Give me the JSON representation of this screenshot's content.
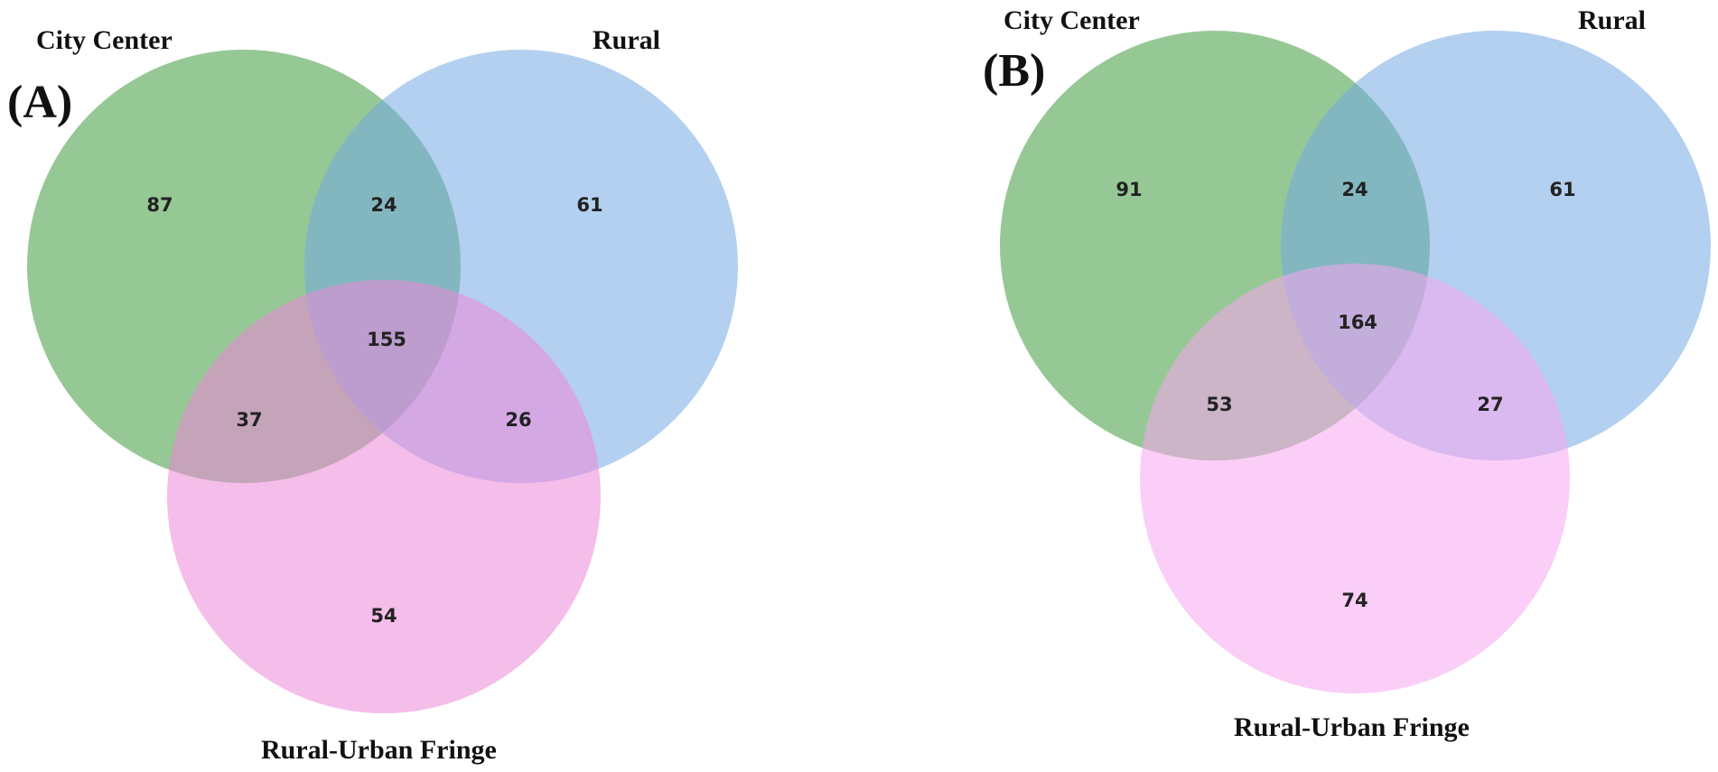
{
  "colors": {
    "city_center": "#3f9a3f",
    "rural": "#74aae3",
    "fringe": "#ec87d9",
    "fringe_b": "#f7a6f1"
  },
  "panels": [
    {
      "letter": "(A)",
      "labels": {
        "city_center": "City Center",
        "rural": "Rural",
        "fringe": "Rural-Urban Fringe"
      },
      "counts": {
        "city_only": "87",
        "rural_only": "61",
        "fringe_only": "54",
        "city_rural": "24",
        "city_fringe": "37",
        "rural_fringe": "26",
        "all_three": "155"
      }
    },
    {
      "letter": "(B)",
      "labels": {
        "city_center": "City Center",
        "rural": "Rural",
        "fringe": "Rural-Urban Fringe"
      },
      "counts": {
        "city_only": "91",
        "rural_only": "61",
        "fringe_only": "74",
        "city_rural": "24",
        "city_fringe": "53",
        "rural_fringe": "27",
        "all_three": "164"
      }
    }
  ]
}
